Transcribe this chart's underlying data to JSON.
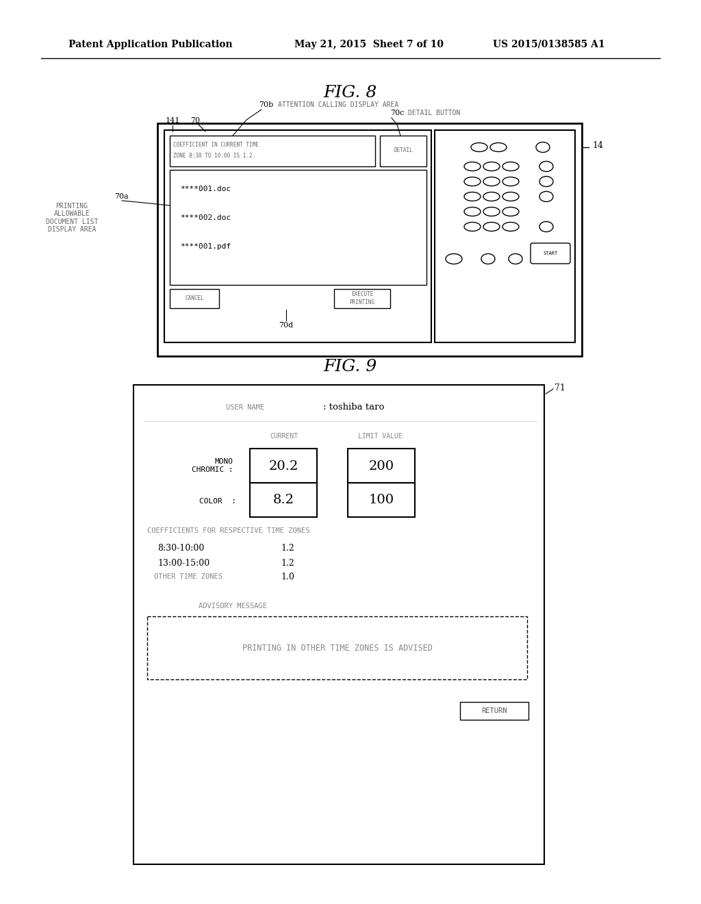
{
  "bg_color": "#ffffff",
  "header_text": "Patent Application Publication",
  "header_date": "May 21, 2015  Sheet 7 of 10",
  "header_patent": "US 2015/0138585 A1",
  "fig8_title": "FIG. 8",
  "fig9_title": "FIG. 9",
  "fig8": {
    "label_14": "14",
    "label_70": "70",
    "label_70a": "70a",
    "label_70b": "70b",
    "label_70c": "70c",
    "label_70d": "70d",
    "label_141": "141",
    "attention_label": "ATTENTION CALLING DISPLAY AREA",
    "detail_label": "DETAIL BUTTON",
    "printing_label": "PRINTING\nALLOWABLE\nDOCUMENT LIST\nDISPLAY AREA",
    "attention_text": "COEFFICIENT IN CURRENT TIME\nZONE 8:30 TO 10:00 IS 1.2.",
    "detail_btn_text": "DETAIL",
    "files": [
      "****001.doc",
      "****002.doc",
      "****001.pdf"
    ],
    "cancel_btn": "CANCEL",
    "execute_btn": "EXECUTE\nPRINTING",
    "start_btn": "START"
  },
  "fig9": {
    "label_71": "71",
    "user_name_label": "USER NAME",
    "user_name_value": ": toshiba taro",
    "current_label": "CURRENT",
    "limit_label": "LIMIT VALUE",
    "mono_label": "MONO\nCHROMIC :",
    "color_label": "COLOR  :",
    "mono_current": "20.2",
    "mono_limit": "200",
    "color_current": "8.2",
    "color_limit": "100",
    "coeff_label": "COEFFICIENTS FOR RESPECTIVE TIME ZONES",
    "time1": "8:30-10:00",
    "coeff1": "1.2",
    "time2": "13:00-15:00",
    "coeff2": "1.2",
    "other_label": "OTHER TIME ZONES",
    "other_coeff": "1.0",
    "advisory_label": "ADVISORY MESSAGE",
    "advisory_text": "PRINTING IN OTHER TIME ZONES IS ADVISED",
    "return_btn": "RETURN"
  }
}
